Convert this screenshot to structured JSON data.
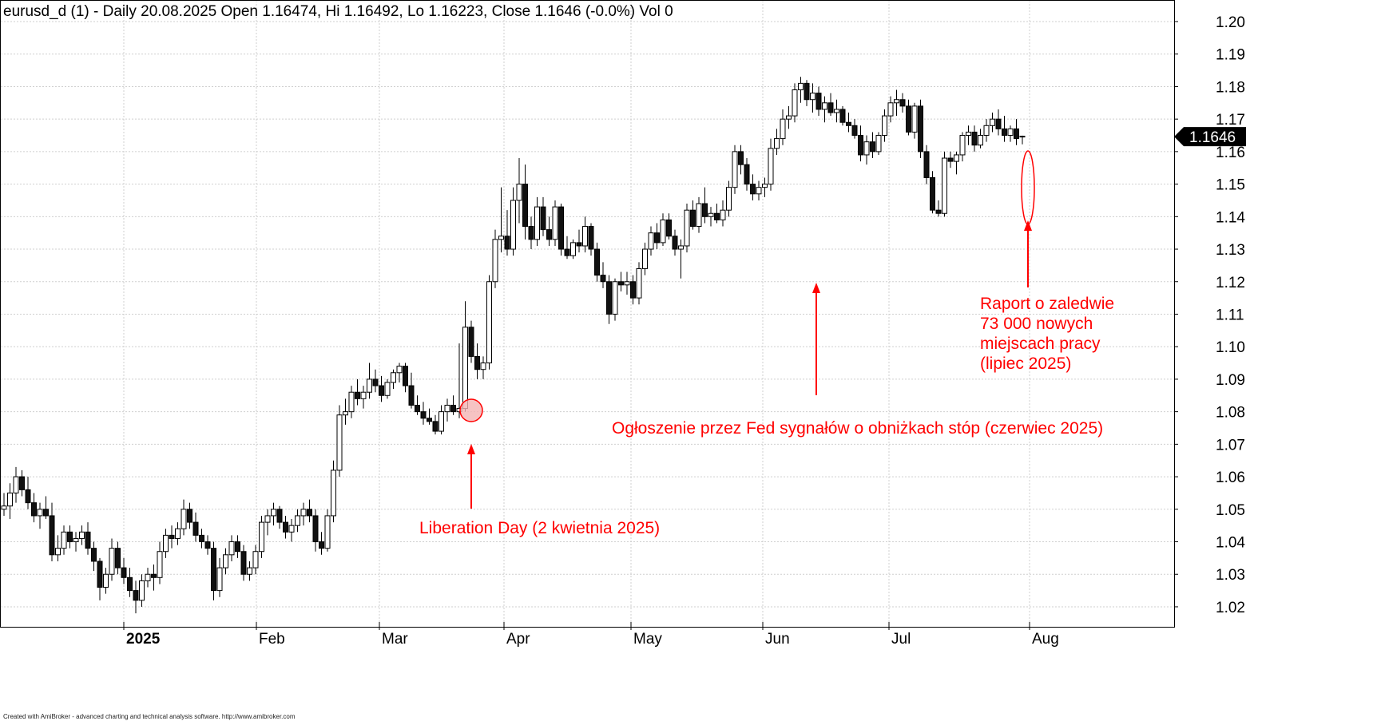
{
  "chart_data": {
    "type": "candlestick",
    "symbol": "eurusd_d (1)",
    "title": "eurusd_d (1) - Daily 20.08.2025 Open 1.16474, Hi 1.16492, Lo 1.16223, Close 1.1646 (-0.0%) Vol 0",
    "period": "Daily",
    "last": {
      "date": "20.08.2025",
      "open": 1.16474,
      "high": 1.16492,
      "low": 1.16223,
      "close": 1.1646
    },
    "price_label": "1.1646",
    "ylim": [
      1.0135,
      1.2045
    ],
    "yticks": [
      "1.20",
      "1.19",
      "1.18",
      "1.17",
      "1.16",
      "1.15",
      "1.14",
      "1.13",
      "1.12",
      "1.11",
      "1.10",
      "1.09",
      "1.08",
      "1.07",
      "1.06",
      "1.05",
      "1.04",
      "1.03",
      "1.02"
    ],
    "xlabels": [
      {
        "label": "2025",
        "bold": true,
        "month_index": 0
      },
      {
        "label": "Feb",
        "bold": false,
        "month_index": 1
      },
      {
        "label": "Mar",
        "bold": false,
        "month_index": 2
      },
      {
        "label": "Apr",
        "bold": false,
        "month_index": 3
      },
      {
        "label": "May",
        "bold": false,
        "month_index": 4
      },
      {
        "label": "Jun",
        "bold": false,
        "month_index": 5
      },
      {
        "label": "Jul",
        "bold": false,
        "month_index": 6
      },
      {
        "label": "Aug",
        "bold": false,
        "month_index": 7
      }
    ],
    "grid": true,
    "colors": {
      "up": "#ffffff",
      "down": "#111111",
      "annotation": "#ff0000",
      "grid": "#cfcfcf",
      "highlight": "#f4b4b4"
    },
    "candles": [
      [
        1.05,
        1.055,
        1.048,
        1.051
      ],
      [
        1.051,
        1.058,
        1.047,
        1.055
      ],
      [
        1.055,
        1.063,
        1.052,
        1.06
      ],
      [
        1.06,
        1.062,
        1.054,
        1.056
      ],
      [
        1.056,
        1.06,
        1.05,
        1.052
      ],
      [
        1.052,
        1.055,
        1.046,
        1.048
      ],
      [
        1.048,
        1.052,
        1.044,
        1.05
      ],
      [
        1.05,
        1.054,
        1.047,
        1.048
      ],
      [
        1.048,
        1.052,
        1.034,
        1.036
      ],
      [
        1.036,
        1.042,
        1.034,
        1.038
      ],
      [
        1.038,
        1.045,
        1.036,
        1.043
      ],
      [
        1.043,
        1.045,
        1.038,
        1.04
      ],
      [
        1.04,
        1.043,
        1.037,
        1.041
      ],
      [
        1.041,
        1.045,
        1.039,
        1.043
      ],
      [
        1.043,
        1.046,
        1.036,
        1.038
      ],
      [
        1.038,
        1.04,
        1.031,
        1.034
      ],
      [
        1.034,
        1.035,
        1.022,
        1.026
      ],
      [
        1.026,
        1.032,
        1.024,
        1.03
      ],
      [
        1.03,
        1.041,
        1.028,
        1.038
      ],
      [
        1.038,
        1.04,
        1.03,
        1.032
      ],
      [
        1.032,
        1.035,
        1.027,
        1.029
      ],
      [
        1.029,
        1.032,
        1.023,
        1.025
      ],
      [
        1.025,
        1.028,
        1.018,
        1.022
      ],
      [
        1.022,
        1.03,
        1.02,
        1.028
      ],
      [
        1.028,
        1.032,
        1.026,
        1.03
      ],
      [
        1.03,
        1.033,
        1.025,
        1.029
      ],
      [
        1.029,
        1.04,
        1.027,
        1.037
      ],
      [
        1.037,
        1.044,
        1.035,
        1.042
      ],
      [
        1.042,
        1.045,
        1.038,
        1.041
      ],
      [
        1.041,
        1.046,
        1.039,
        1.044
      ],
      [
        1.044,
        1.053,
        1.042,
        1.05
      ],
      [
        1.05,
        1.052,
        1.044,
        1.046
      ],
      [
        1.046,
        1.049,
        1.04,
        1.042
      ],
      [
        1.042,
        1.044,
        1.038,
        1.04
      ],
      [
        1.04,
        1.042,
        1.036,
        1.038
      ],
      [
        1.038,
        1.04,
        1.022,
        1.025
      ],
      [
        1.025,
        1.035,
        1.023,
        1.032
      ],
      [
        1.032,
        1.038,
        1.03,
        1.036
      ],
      [
        1.036,
        1.042,
        1.034,
        1.04
      ],
      [
        1.04,
        1.042,
        1.035,
        1.037
      ],
      [
        1.037,
        1.039,
        1.028,
        1.03
      ],
      [
        1.03,
        1.034,
        1.028,
        1.032
      ],
      [
        1.032,
        1.039,
        1.03,
        1.037
      ],
      [
        1.037,
        1.048,
        1.035,
        1.046
      ],
      [
        1.046,
        1.05,
        1.042,
        1.048
      ],
      [
        1.048,
        1.052,
        1.045,
        1.05
      ],
      [
        1.05,
        1.051,
        1.044,
        1.046
      ],
      [
        1.046,
        1.048,
        1.041,
        1.043
      ],
      [
        1.043,
        1.047,
        1.04,
        1.045
      ],
      [
        1.045,
        1.05,
        1.043,
        1.048
      ],
      [
        1.048,
        1.052,
        1.045,
        1.05
      ],
      [
        1.05,
        1.053,
        1.046,
        1.048
      ],
      [
        1.048,
        1.05,
        1.037,
        1.04
      ],
      [
        1.04,
        1.043,
        1.036,
        1.038
      ],
      [
        1.038,
        1.05,
        1.037,
        1.048
      ],
      [
        1.048,
        1.065,
        1.046,
        1.062
      ],
      [
        1.062,
        1.082,
        1.06,
        1.079
      ],
      [
        1.079,
        1.084,
        1.076,
        1.08
      ],
      [
        1.08,
        1.088,
        1.078,
        1.086
      ],
      [
        1.086,
        1.09,
        1.082,
        1.084
      ],
      [
        1.084,
        1.088,
        1.081,
        1.086
      ],
      [
        1.086,
        1.095,
        1.084,
        1.09
      ],
      [
        1.09,
        1.093,
        1.086,
        1.088
      ],
      [
        1.088,
        1.091,
        1.083,
        1.085
      ],
      [
        1.085,
        1.09,
        1.084,
        1.089
      ],
      [
        1.089,
        1.093,
        1.087,
        1.092
      ],
      [
        1.092,
        1.095,
        1.089,
        1.094
      ],
      [
        1.094,
        1.095,
        1.086,
        1.088
      ],
      [
        1.088,
        1.092,
        1.081,
        1.082
      ],
      [
        1.082,
        1.085,
        1.079,
        1.08
      ],
      [
        1.08,
        1.083,
        1.076,
        1.078
      ],
      [
        1.078,
        1.081,
        1.076,
        1.077
      ],
      [
        1.077,
        1.079,
        1.073,
        1.074
      ],
      [
        1.074,
        1.082,
        1.073,
        1.08
      ],
      [
        1.08,
        1.084,
        1.077,
        1.082
      ],
      [
        1.082,
        1.085,
        1.079,
        1.08
      ],
      [
        1.08,
        1.101,
        1.078,
        1.081
      ],
      [
        1.081,
        1.114,
        1.08,
        1.106
      ],
      [
        1.106,
        1.108,
        1.095,
        1.097
      ],
      [
        1.097,
        1.101,
        1.09,
        1.093
      ],
      [
        1.093,
        1.097,
        1.09,
        1.095
      ],
      [
        1.095,
        1.122,
        1.093,
        1.12
      ],
      [
        1.12,
        1.136,
        1.118,
        1.133
      ],
      [
        1.133,
        1.149,
        1.129,
        1.134
      ],
      [
        1.134,
        1.142,
        1.128,
        1.13
      ],
      [
        1.13,
        1.149,
        1.128,
        1.145
      ],
      [
        1.145,
        1.158,
        1.138,
        1.15
      ],
      [
        1.15,
        1.156,
        1.133,
        1.137
      ],
      [
        1.137,
        1.14,
        1.13,
        1.133
      ],
      [
        1.133,
        1.146,
        1.131,
        1.143
      ],
      [
        1.143,
        1.146,
        1.134,
        1.136
      ],
      [
        1.136,
        1.14,
        1.131,
        1.133
      ],
      [
        1.133,
        1.145,
        1.131,
        1.143
      ],
      [
        1.143,
        1.144,
        1.128,
        1.13
      ],
      [
        1.13,
        1.134,
        1.127,
        1.128
      ],
      [
        1.128,
        1.133,
        1.127,
        1.132
      ],
      [
        1.132,
        1.136,
        1.129,
        1.131
      ],
      [
        1.131,
        1.14,
        1.129,
        1.137
      ],
      [
        1.137,
        1.138,
        1.128,
        1.13
      ],
      [
        1.13,
        1.132,
        1.12,
        1.122
      ],
      [
        1.122,
        1.126,
        1.118,
        1.12
      ],
      [
        1.12,
        1.122,
        1.107,
        1.11
      ],
      [
        1.11,
        1.121,
        1.108,
        1.12
      ],
      [
        1.12,
        1.123,
        1.117,
        1.119
      ],
      [
        1.119,
        1.123,
        1.116,
        1.12
      ],
      [
        1.12,
        1.122,
        1.113,
        1.115
      ],
      [
        1.115,
        1.126,
        1.113,
        1.124
      ],
      [
        1.124,
        1.132,
        1.122,
        1.13
      ],
      [
        1.13,
        1.137,
        1.128,
        1.135
      ],
      [
        1.135,
        1.138,
        1.13,
        1.132
      ],
      [
        1.132,
        1.141,
        1.131,
        1.139
      ],
      [
        1.139,
        1.141,
        1.133,
        1.134
      ],
      [
        1.134,
        1.136,
        1.128,
        1.13
      ],
      [
        1.13,
        1.133,
        1.121,
        1.131
      ],
      [
        1.131,
        1.144,
        1.129,
        1.142
      ],
      [
        1.142,
        1.145,
        1.136,
        1.137
      ],
      [
        1.137,
        1.146,
        1.135,
        1.144
      ],
      [
        1.144,
        1.149,
        1.138,
        1.14
      ],
      [
        1.14,
        1.143,
        1.137,
        1.141
      ],
      [
        1.141,
        1.144,
        1.138,
        1.139
      ],
      [
        1.139,
        1.145,
        1.137,
        1.142
      ],
      [
        1.142,
        1.151,
        1.14,
        1.149
      ],
      [
        1.149,
        1.162,
        1.147,
        1.16
      ],
      [
        1.16,
        1.162,
        1.153,
        1.156
      ],
      [
        1.156,
        1.158,
        1.148,
        1.15
      ],
      [
        1.15,
        1.153,
        1.145,
        1.147
      ],
      [
        1.147,
        1.151,
        1.145,
        1.149
      ],
      [
        1.149,
        1.152,
        1.146,
        1.15
      ],
      [
        1.15,
        1.164,
        1.148,
        1.161
      ],
      [
        1.161,
        1.167,
        1.159,
        1.164
      ],
      [
        1.164,
        1.173,
        1.162,
        1.17
      ],
      [
        1.17,
        1.174,
        1.167,
        1.171
      ],
      [
        1.171,
        1.181,
        1.169,
        1.179
      ],
      [
        1.179,
        1.183,
        1.175,
        1.181
      ],
      [
        1.181,
        1.182,
        1.174,
        1.176
      ],
      [
        1.176,
        1.181,
        1.172,
        1.178
      ],
      [
        1.178,
        1.18,
        1.171,
        1.173
      ],
      [
        1.173,
        1.177,
        1.169,
        1.175
      ],
      [
        1.175,
        1.178,
        1.171,
        1.172
      ],
      [
        1.172,
        1.176,
        1.169,
        1.173
      ],
      [
        1.173,
        1.174,
        1.168,
        1.169
      ],
      [
        1.169,
        1.172,
        1.166,
        1.168
      ],
      [
        1.168,
        1.17,
        1.164,
        1.165
      ],
      [
        1.165,
        1.168,
        1.157,
        1.159
      ],
      [
        1.159,
        1.165,
        1.156,
        1.163
      ],
      [
        1.163,
        1.166,
        1.158,
        1.16
      ],
      [
        1.16,
        1.166,
        1.159,
        1.165
      ],
      [
        1.165,
        1.173,
        1.163,
        1.171
      ],
      [
        1.171,
        1.177,
        1.169,
        1.175
      ],
      [
        1.175,
        1.179,
        1.171,
        1.176
      ],
      [
        1.176,
        1.178,
        1.172,
        1.174
      ],
      [
        1.174,
        1.176,
        1.165,
        1.166
      ],
      [
        1.166,
        1.175,
        1.164,
        1.174
      ],
      [
        1.174,
        1.176,
        1.158,
        1.16
      ],
      [
        1.16,
        1.162,
        1.15,
        1.152
      ],
      [
        1.152,
        1.154,
        1.141,
        1.142
      ],
      [
        1.142,
        1.145,
        1.14,
        1.141
      ],
      [
        1.141,
        1.16,
        1.14,
        1.158
      ],
      [
        1.158,
        1.16,
        1.155,
        1.157
      ],
      [
        1.157,
        1.16,
        1.153,
        1.159
      ],
      [
        1.159,
        1.166,
        1.157,
        1.165
      ],
      [
        1.165,
        1.168,
        1.162,
        1.166
      ],
      [
        1.166,
        1.168,
        1.16,
        1.162
      ],
      [
        1.162,
        1.167,
        1.161,
        1.165
      ],
      [
        1.165,
        1.17,
        1.163,
        1.168
      ],
      [
        1.168,
        1.172,
        1.166,
        1.17
      ],
      [
        1.17,
        1.173,
        1.165,
        1.167
      ],
      [
        1.167,
        1.171,
        1.163,
        1.165
      ],
      [
        1.165,
        1.168,
        1.163,
        1.167
      ],
      [
        1.167,
        1.17,
        1.162,
        1.164
      ],
      [
        1.16474,
        1.16492,
        1.16223,
        1.1646
      ]
    ],
    "annotations": [
      {
        "id": "liberation-day",
        "lines": [
          "Liberation Day (2 kwietnia 2025)"
        ],
        "candle_index": 78
      },
      {
        "id": "fed-signals",
        "lines": [
          "Ogłoszenie przez Fed sygnałów o obniżkach stóp (czerwiec 2025)"
        ],
        "candle_index": 121
      },
      {
        "id": "jobs-report",
        "lines": [
          "Raport o zaledwie",
          "73 000 nowych",
          "miejscach pracy",
          "(lipiec 2025)"
        ],
        "candle_index": 161
      }
    ]
  },
  "footer": {
    "credit": "Created with AmiBroker - advanced charting and technical analysis software. http://www.amibroker.com"
  }
}
